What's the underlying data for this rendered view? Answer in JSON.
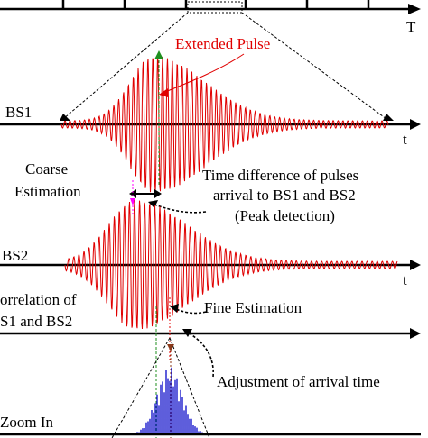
{
  "labels": {
    "top_axis": "T",
    "extended_pulse": "Extended Pulse",
    "bs1": "BS1",
    "t1": "t",
    "coarse_1": "Coarse",
    "coarse_2": "Estimation",
    "timediff_1": "Time difference of pulses",
    "timediff_2": "arrival to BS1 and BS2",
    "timediff_3": "(Peak detection)",
    "bs2": "BS2",
    "t2": "t",
    "corr_1": "orrelation of",
    "corr_2": "S1 and BS2",
    "fine": "Fine Estimation",
    "adjust": "Adjustment of arrival time",
    "t3": "t",
    "zoom": "Zoom In"
  },
  "colors": {
    "pulse": "#e00000",
    "correlation": "#1a1acc",
    "marker_green": "#1f8f1f",
    "marker_magenta": "#ff00ff",
    "marker_brown": "#8b3a1a"
  }
}
